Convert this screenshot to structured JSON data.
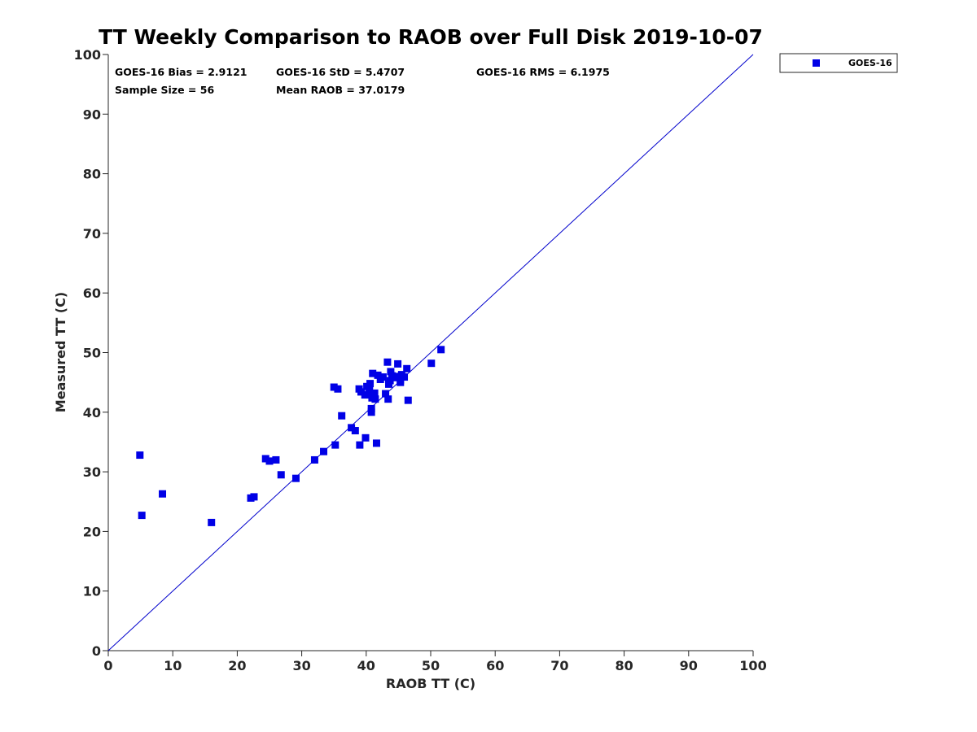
{
  "chart_data": {
    "type": "scatter",
    "title": "TT Weekly Comparison to RAOB over Full Disk 2019-10-07",
    "xlabel": "RAOB TT (C)",
    "ylabel": "Measured TT (C)",
    "xlim": [
      0,
      100
    ],
    "ylim": [
      0,
      100
    ],
    "xticks": [
      "0",
      "10",
      "20",
      "30",
      "40",
      "50",
      "60",
      "70",
      "80",
      "90",
      "100"
    ],
    "yticks": [
      "0",
      "10",
      "20",
      "30",
      "40",
      "50",
      "60",
      "70",
      "80",
      "90",
      "100"
    ],
    "grid": false,
    "legend_position": "outside-top-right",
    "reference_line": "one-to-one",
    "marker_color": "#0000e6",
    "line_color": "#0000cc",
    "series": [
      {
        "name": "GOES-16",
        "points": [
          [
            4.9,
            32.8
          ],
          [
            5.2,
            22.7
          ],
          [
            8.4,
            26.3
          ],
          [
            16.0,
            21.5
          ],
          [
            22.1,
            25.6
          ],
          [
            22.6,
            25.8
          ],
          [
            24.4,
            32.2
          ],
          [
            25.0,
            31.8
          ],
          [
            26.0,
            32.0
          ],
          [
            26.8,
            29.5
          ],
          [
            29.1,
            28.9
          ],
          [
            32.0,
            32.0
          ],
          [
            33.4,
            33.4
          ],
          [
            35.0,
            44.2
          ],
          [
            35.2,
            34.5
          ],
          [
            35.6,
            43.9
          ],
          [
            36.2,
            39.4
          ],
          [
            37.7,
            37.4
          ],
          [
            38.3,
            36.9
          ],
          [
            38.9,
            43.9
          ],
          [
            39.2,
            43.4
          ],
          [
            39.0,
            34.5
          ],
          [
            39.9,
            35.7
          ],
          [
            39.8,
            42.9
          ],
          [
            40.1,
            44.3
          ],
          [
            40.5,
            43.6
          ],
          [
            40.4,
            43.0
          ],
          [
            40.6,
            44.8
          ],
          [
            40.8,
            40.0
          ],
          [
            40.8,
            40.6
          ],
          [
            40.9,
            42.4
          ],
          [
            41.0,
            46.5
          ],
          [
            41.3,
            43.2
          ],
          [
            41.4,
            42.2
          ],
          [
            41.6,
            34.8
          ],
          [
            41.8,
            46.2
          ],
          [
            42.2,
            45.5
          ],
          [
            42.6,
            45.9
          ],
          [
            43.0,
            43.1
          ],
          [
            43.4,
            42.2
          ],
          [
            43.3,
            48.4
          ],
          [
            43.5,
            44.7
          ],
          [
            43.8,
            46.8
          ],
          [
            43.7,
            45.3
          ],
          [
            44.2,
            45.8
          ],
          [
            44.6,
            46.0
          ],
          [
            44.9,
            48.1
          ],
          [
            45.3,
            45.4
          ],
          [
            45.5,
            46.3
          ],
          [
            45.3,
            45.0
          ],
          [
            45.9,
            45.9
          ],
          [
            46.3,
            47.3
          ],
          [
            46.5,
            42.0
          ],
          [
            50.1,
            48.2
          ],
          [
            51.6,
            50.5
          ],
          [
            44.0,
            46.1
          ]
        ]
      }
    ],
    "stats": {
      "bias": "GOES-16 Bias = 2.9121",
      "std": "GOES-16 StD = 5.4707",
      "rms": "GOES-16 RMS = 6.1975",
      "sample_size": "Sample Size = 56",
      "mean_raob": "Mean RAOB = 37.0179"
    }
  }
}
